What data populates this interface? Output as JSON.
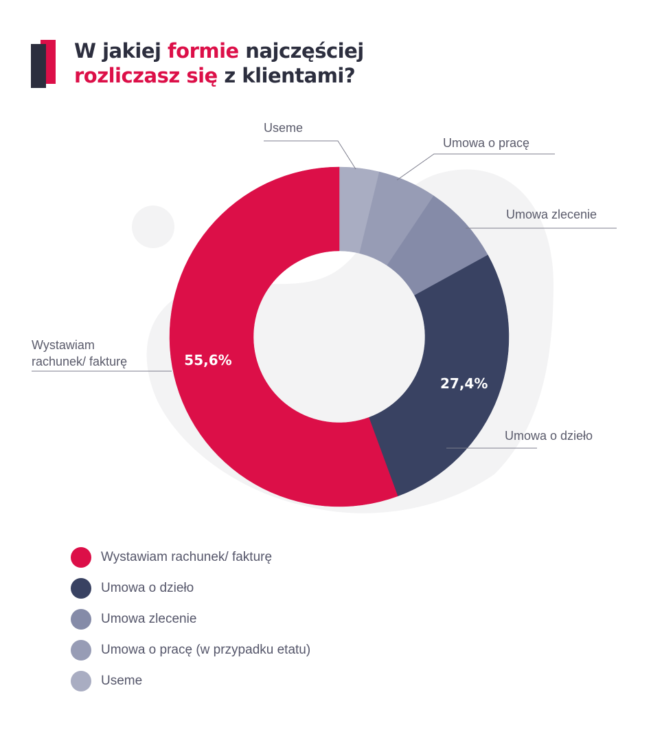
{
  "title": {
    "part1": "W jakiej ",
    "accent1": "formie",
    "part2": " najczęściej",
    "accent2": "rozliczasz się",
    "part3": " z klientami?"
  },
  "colors": {
    "accent": "#dc0f48",
    "dark": "#2c2e3e",
    "background_blob": "#f3f3f4"
  },
  "chart_data": {
    "type": "pie",
    "variant": "donut",
    "series": [
      {
        "name": "Wystawiam rachunek/ fakturę",
        "value": 55.6,
        "label": "55,6%",
        "callout": "Wystawiam\nrachunek/ fakturę",
        "color": "#dc0f48"
      },
      {
        "name": "Umowa o dzieło",
        "value": 27.4,
        "label": "27,4%",
        "callout": "Umowa o dzieło",
        "color": "#394262"
      },
      {
        "name": "Umowa zlecenie",
        "value": 7.6,
        "label": "",
        "callout": "Umowa zlecenie",
        "color": "#858ba8"
      },
      {
        "name": "Umowa o pracę (w przypadku etatu)",
        "value": 5.6,
        "label": "",
        "callout": "Umowa o pracę",
        "color": "#979cb5"
      },
      {
        "name": "Useme",
        "value": 3.8,
        "label": "",
        "callout": "Useme",
        "color": "#a9adc2"
      }
    ]
  },
  "legend": [
    {
      "label": "Wystawiam rachunek/ fakturę",
      "color": "#dc0f48"
    },
    {
      "label": "Umowa o dzieło",
      "color": "#394262"
    },
    {
      "label": "Umowa zlecenie",
      "color": "#858ba8"
    },
    {
      "label": "Umowa o pracę (w przypadku etatu)",
      "color": "#979cb5"
    },
    {
      "label": "Useme",
      "color": "#a9adc2"
    }
  ]
}
